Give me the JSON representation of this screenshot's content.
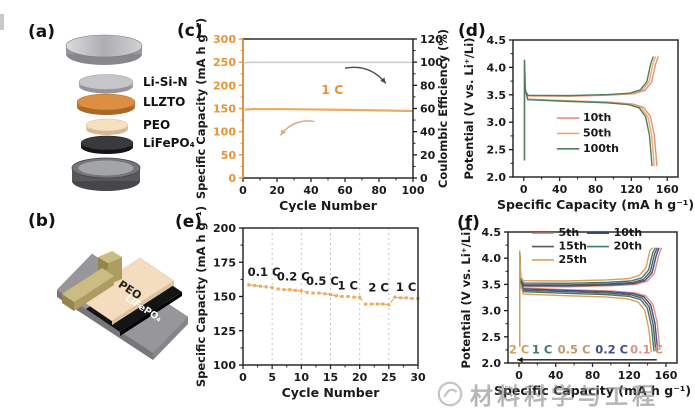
{
  "figure": {
    "panels": {
      "a": "(a)",
      "b": "(b)",
      "c": "(c)",
      "d": "(d)",
      "e": "(e)",
      "f": "(f)"
    }
  },
  "panel_a": {
    "labels": [
      "Li-Si-N",
      "LLZTO",
      "PEO",
      "LiFePO₄"
    ],
    "layers": [
      {
        "name": "top-spacer-disc",
        "color": "#c9c9cd"
      },
      {
        "name": "li-si-n-disc",
        "color": "#c6c6ca"
      },
      {
        "name": "llzto-disc",
        "color": "#DD8F41"
      },
      {
        "name": "peo-disc",
        "color": "#F5E0C2"
      },
      {
        "name": "lifepo4-disc",
        "color": "#3a3a3e"
      },
      {
        "name": "cell-case",
        "color": "#75757a"
      }
    ]
  },
  "panel_b": {
    "peo_label": "PEO",
    "lifepo4_label": "LiFePO₄",
    "substrate_color": "#97979b",
    "electrode_color": "#141416",
    "peo_color": "#F4DDBE",
    "clamp_color": "#CBBD82"
  },
  "watermark": {
    "text": "材料科学与工程",
    "color": "#868686"
  },
  "chart_data": [
    {
      "id": "c",
      "panel": "c",
      "type": "line",
      "xlabel": "Cycle Number",
      "x": {
        "range": [
          0,
          100
        ],
        "minor": 10,
        "ticks": {
          "values": [
            0,
            20,
            40,
            60,
            80,
            100
          ],
          "labels": [
            "0",
            "20",
            "40",
            "60",
            "80",
            "100"
          ]
        }
      },
      "y_left": {
        "label": "Specific Capacity (mA h g⁻¹)",
        "range": [
          0,
          300
        ],
        "minor": 25,
        "ticks": {
          "values": [
            0,
            50,
            100,
            150,
            200,
            250,
            300
          ],
          "labels": [
            "0",
            "50",
            "100",
            "150",
            "200",
            "250",
            "300"
          ]
        },
        "tick_color": "#E8923A",
        "spine_color": "#E8923A"
      },
      "y_right": {
        "label": "Coulombic Efficiency (%)",
        "range": [
          0,
          120
        ],
        "minor": 10,
        "ticks": {
          "values": [
            0,
            20,
            40,
            60,
            80,
            100,
            120
          ],
          "labels": [
            "0",
            "20",
            "40",
            "60",
            "80",
            "100",
            "120"
          ]
        },
        "tick_color": "#1a1a1a"
      },
      "series": [
        {
          "name": "specific-capacity-1C",
          "axis": "left",
          "color": "#EDAA60",
          "width": 2.2,
          "points": [
            [
              1,
              147.5
            ],
            [
              6,
              148.8
            ],
            [
              20,
              148.8
            ],
            [
              40,
              148.0
            ],
            [
              60,
              147.0
            ],
            [
              80,
              146.0
            ],
            [
              100,
              144.5
            ]
          ]
        },
        {
          "name": "coulombic-efficiency",
          "axis": "right",
          "color": "#CCCCCC",
          "width": 1.6,
          "points": [
            [
              1,
              99.5
            ],
            [
              5,
              99.9
            ],
            [
              100,
              99.9
            ]
          ]
        }
      ],
      "annotations": [
        {
          "text": "1 C",
          "x": 46,
          "y": 181,
          "color": "#E8923A",
          "size": 12.5
        }
      ],
      "arrows": [
        {
          "x1": 60,
          "y1": 237,
          "x2": 84,
          "y2": 204,
          "color": "#4a4a4a",
          "bend": -0.3
        },
        {
          "x1": 42,
          "y1": 122,
          "x2": 22,
          "y2": 92,
          "color": "#E2A56B",
          "bend": 0.3
        }
      ]
    },
    {
      "id": "d",
      "panel": "d",
      "type": "loops",
      "xlabel": "Specific Capacity (mA h g⁻¹)",
      "x": {
        "range": [
          -12,
          172
        ],
        "minor": 20,
        "ticks": {
          "values": [
            0,
            40,
            80,
            120,
            160
          ],
          "labels": [
            "0",
            "40",
            "80",
            "120",
            "160"
          ]
        }
      },
      "y_left": {
        "label": "Potential (V vs. Li⁺/Li)",
        "range": [
          2.0,
          4.5
        ],
        "minor": 0.25,
        "ticks": {
          "values": [
            2.0,
            2.5,
            3.0,
            3.5,
            4.0,
            4.5
          ],
          "labels": [
            "2.0",
            "2.5",
            "3.0",
            "3.5",
            "4.0",
            "4.5"
          ]
        },
        "tick_color": "#1a1a1a"
      },
      "series": [
        {
          "name": "10th",
          "color": "#E2907E",
          "capacity": 150,
          "charge_v": 3.46,
          "discharge_v": 3.39,
          "v_max": 4.2,
          "v_min": 2.2
        },
        {
          "name": "50th",
          "color": "#EDAA60",
          "capacity": 147,
          "charge_v": 3.465,
          "discharge_v": 3.385,
          "v_max": 4.2,
          "v_min": 2.2
        },
        {
          "name": "100th",
          "color": "#4F7D5E",
          "capacity": 144.5,
          "charge_v": 3.47,
          "discharge_v": 3.38,
          "v_max": 4.2,
          "v_min": 2.2
        }
      ]
    },
    {
      "id": "e",
      "panel": "e",
      "type": "line",
      "xlabel": "Cycle Number",
      "x": {
        "range": [
          0,
          30
        ],
        "minor": 2.5,
        "gridlines": [
          5,
          10,
          15,
          20,
          25
        ],
        "ticks": {
          "values": [
            0,
            5,
            10,
            15,
            20,
            25,
            30
          ],
          "labels": [
            "0",
            "5",
            "10",
            "15",
            "20",
            "25",
            "30"
          ]
        }
      },
      "y_left": {
        "label": "Specific Capacity (mA h g⁻¹)",
        "range": [
          100,
          200
        ],
        "minor": 12.5,
        "ticks": {
          "values": [
            100,
            125,
            150,
            175,
            200
          ],
          "labels": [
            "100",
            "125",
            "150",
            "175",
            "200"
          ]
        },
        "tick_color": "#1a1a1a"
      },
      "series": [
        {
          "name": "rate-capability",
          "axis": "left",
          "color": "#EDAA60",
          "width": 1.3,
          "dashed": true,
          "marker": "square",
          "points": [
            [
              1,
              158.5
            ],
            [
              2,
              158
            ],
            [
              3,
              157.5
            ],
            [
              4,
              157
            ],
            [
              5,
              156.5
            ],
            [
              6,
              155.5
            ],
            [
              7,
              155
            ],
            [
              8,
              155
            ],
            [
              9,
              154.5
            ],
            [
              10,
              154
            ],
            [
              11,
              153
            ],
            [
              12,
              152.5
            ],
            [
              13,
              152.5
            ],
            [
              14,
              152
            ],
            [
              15,
              151.5
            ],
            [
              16,
              150.5
            ],
            [
              17,
              150
            ],
            [
              18,
              150
            ],
            [
              19,
              149.5
            ],
            [
              20,
              149.5
            ],
            [
              21,
              144.5
            ],
            [
              22,
              144.5
            ],
            [
              23,
              144.5
            ],
            [
              24,
              144.5
            ],
            [
              25,
              144
            ],
            [
              26,
              149.5
            ],
            [
              27,
              149
            ],
            [
              28,
              149
            ],
            [
              29,
              148.5
            ],
            [
              30,
              148.5
            ]
          ]
        }
      ],
      "annotations": [
        {
          "text": "0.1 C",
          "x": 0.8,
          "y": 165,
          "color": "#1a1a1a",
          "size": 11.5
        },
        {
          "text": "0.2 C",
          "x": 5.8,
          "y": 161.5,
          "color": "#1a1a1a",
          "size": 11.5
        },
        {
          "text": "0.5 C",
          "x": 10.8,
          "y": 158.5,
          "color": "#1a1a1a",
          "size": 11.5
        },
        {
          "text": "1 C",
          "x": 16.2,
          "y": 155,
          "color": "#1a1a1a",
          "size": 11.5
        },
        {
          "text": "2 C",
          "x": 21.5,
          "y": 153.5,
          "color": "#1a1a1a",
          "size": 11.5
        },
        {
          "text": "1 C",
          "x": 26.2,
          "y": 154,
          "color": "#1a1a1a",
          "size": 11.5
        }
      ]
    },
    {
      "id": "f",
      "panel": "f",
      "type": "loops",
      "xlabel": "Specific Capacity (mA h g⁻¹)",
      "x": {
        "range": [
          -12,
          172
        ],
        "minor": 20,
        "ticks": {
          "values": [
            0,
            40,
            80,
            120,
            160
          ],
          "labels": [
            "0",
            "40",
            "80",
            "120",
            "160"
          ]
        }
      },
      "y_left": {
        "label": "Potential (V vs. Li⁺/Li)",
        "range": [
          2.0,
          4.5
        ],
        "minor": 0.25,
        "ticks": {
          "values": [
            2.0,
            2.5,
            3.0,
            3.5,
            4.0,
            4.5
          ],
          "labels": [
            "2.0",
            "2.5",
            "3.0",
            "3.5",
            "4.0",
            "4.5"
          ]
        },
        "tick_color": "#1a1a1a"
      },
      "series": [
        {
          "name": "5th",
          "rate": "0.1 C",
          "color": "#E2907E",
          "capacity": 155,
          "charge_v": 3.44,
          "discharge_v": 3.4,
          "v_max": 4.2,
          "v_min": 2.25
        },
        {
          "name": "10th",
          "rate": "0.2 C",
          "color": "#3F4E8E",
          "capacity": 152.5,
          "charge_v": 3.455,
          "discharge_v": 3.385,
          "v_max": 4.2,
          "v_min": 2.24
        },
        {
          "name": "15th",
          "rate": "0.5 C",
          "color": "#5A5A5A",
          "capacity": 150.5,
          "charge_v": 3.475,
          "discharge_v": 3.36,
          "v_max": 4.2,
          "v_min": 2.23
        },
        {
          "name": "20th",
          "rate": "1 C",
          "color": "#41796B",
          "capacity": 148.5,
          "charge_v": 3.505,
          "discharge_v": 3.33,
          "v_max": 4.2,
          "v_min": 2.22
        },
        {
          "name": "25th",
          "rate": "2 C",
          "color": "#D9A05B",
          "capacity": 145.5,
          "charge_v": 3.55,
          "discharge_v": 3.285,
          "v_max": 4.2,
          "v_min": 2.21
        }
      ],
      "annotations": [
        {
          "text": "2 C",
          "x": -11,
          "y": 2.18,
          "color": "#D9A05B",
          "size": 11.5
        },
        {
          "text": "1 C",
          "x": 14,
          "y": 2.18,
          "color": "#41796B",
          "size": 11.5
        },
        {
          "text": "0.5 C",
          "x": 42,
          "y": 2.18,
          "color": "#C09A6A",
          "size": 11.5
        },
        {
          "text": "0.2 C",
          "x": 83,
          "y": 2.18,
          "color": "#3F4E8E",
          "size": 11.5
        },
        {
          "text": "0.1 C",
          "x": 121,
          "y": 2.18,
          "color": "#E2907E",
          "size": 11.5
        }
      ],
      "arrows": [
        {
          "x1": 150,
          "y1": 2.06,
          "x2": -2,
          "y2": 2.06,
          "color": "#1a1a1a",
          "bend": 0
        }
      ]
    }
  ]
}
